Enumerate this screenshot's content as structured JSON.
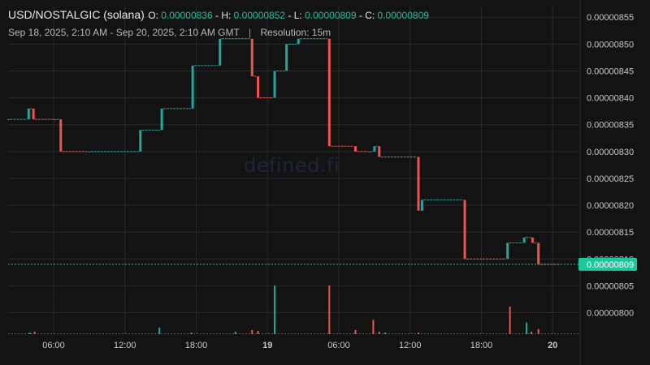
{
  "header": {
    "pair": "USD/NOSTALGIC (solana)",
    "open_label": "O:",
    "open": "0.00000836",
    "high_label": "H:",
    "high": "0.00000852",
    "low_label": "L:",
    "low": "0.00000809",
    "close_label": "C:",
    "close": "0.00000809",
    "range": "Sep 18, 2025, 2:10 AM - Sep 20, 2025, 2:10 AM GMT",
    "separator": "|",
    "resolution": "Resolution: 15m"
  },
  "watermark": "defined.fi",
  "colors": {
    "background": "#131313",
    "grid": "#2a2a2a",
    "up": "#26a69a",
    "down": "#ef5350",
    "last_price_badge": "#1bc79b"
  },
  "chart_data": {
    "type": "candlestick",
    "title": "USD/NOSTALGIC (solana)",
    "x_ticks": [
      "06:00",
      "12:00",
      "18:00",
      "19",
      "06:00",
      "12:00",
      "18:00",
      "20"
    ],
    "x_tick_hours": [
      6,
      12,
      18,
      24,
      30,
      36,
      42,
      48
    ],
    "x_range_hours": [
      2.17,
      50.17
    ],
    "y_ticks": [
      "0.00000855",
      "0.00000850",
      "0.00000845",
      "0.00000840",
      "0.00000835",
      "0.00000830",
      "0.00000825",
      "0.00000820",
      "0.00000815",
      "0.00000810",
      "0.00000805",
      "0.00000800"
    ],
    "y_tick_values": [
      855,
      850,
      845,
      840,
      835,
      830,
      825,
      820,
      815,
      810,
      805,
      800
    ],
    "y_unit_scale": "1e-8",
    "y_range": [
      796,
      857
    ],
    "last_price": "0.00000809",
    "last_price_value": 809,
    "candles": [
      {
        "t": 2.2,
        "o": 836,
        "c": 836
      },
      {
        "t": 3.9,
        "o": 836,
        "c": 838
      },
      {
        "t": 4.3,
        "o": 838,
        "c": 836
      },
      {
        "t": 6.1,
        "o": 836,
        "c": 836
      },
      {
        "t": 6.6,
        "o": 836,
        "c": 830
      },
      {
        "t": 9.0,
        "o": 830,
        "c": 830
      },
      {
        "t": 13.3,
        "o": 830,
        "c": 834
      },
      {
        "t": 15.1,
        "o": 834,
        "c": 838
      },
      {
        "t": 17.7,
        "o": 838,
        "c": 846
      },
      {
        "t": 20.0,
        "o": 846,
        "c": 851
      },
      {
        "t": 22.7,
        "o": 851,
        "c": 844
      },
      {
        "t": 23.2,
        "o": 844,
        "c": 840
      },
      {
        "t": 24.6,
        "o": 840,
        "c": 845
      },
      {
        "t": 25.6,
        "o": 845,
        "c": 850
      },
      {
        "t": 26.6,
        "o": 850,
        "c": 851
      },
      {
        "t": 29.2,
        "o": 851,
        "c": 831
      },
      {
        "t": 31.4,
        "o": 831,
        "c": 830
      },
      {
        "t": 32.6,
        "o": 830,
        "c": 830
      },
      {
        "t": 33.0,
        "o": 830,
        "c": 831
      },
      {
        "t": 33.4,
        "o": 831,
        "c": 829
      },
      {
        "t": 36.7,
        "o": 829,
        "c": 819
      },
      {
        "t": 37.0,
        "o": 819,
        "c": 821
      },
      {
        "t": 40.6,
        "o": 821,
        "c": 810
      },
      {
        "t": 44.2,
        "o": 810,
        "c": 813
      },
      {
        "t": 45.6,
        "o": 813,
        "c": 814
      },
      {
        "t": 46.3,
        "o": 814,
        "c": 813
      },
      {
        "t": 46.8,
        "o": 813,
        "c": 809
      }
    ],
    "volume": [
      {
        "t": 4.0,
        "v": 2,
        "d": "up"
      },
      {
        "t": 4.4,
        "v": 3,
        "d": "down"
      },
      {
        "t": 14.9,
        "v": 8,
        "d": "up"
      },
      {
        "t": 17.6,
        "v": 2,
        "d": "up"
      },
      {
        "t": 21.3,
        "v": 3,
        "d": "up"
      },
      {
        "t": 22.7,
        "v": 5,
        "d": "down"
      },
      {
        "t": 23.2,
        "v": 4,
        "d": "down"
      },
      {
        "t": 24.6,
        "v": 58,
        "d": "up"
      },
      {
        "t": 29.2,
        "v": 58,
        "d": "down"
      },
      {
        "t": 31.4,
        "v": 5,
        "d": "down"
      },
      {
        "t": 32.9,
        "v": 17,
        "d": "down"
      },
      {
        "t": 33.4,
        "v": 3,
        "d": "down"
      },
      {
        "t": 33.9,
        "v": 2,
        "d": "up"
      },
      {
        "t": 36.7,
        "v": 2,
        "d": "down"
      },
      {
        "t": 44.4,
        "v": 33,
        "d": "down"
      },
      {
        "t": 45.8,
        "v": 14,
        "d": "up"
      },
      {
        "t": 46.2,
        "v": 3,
        "d": "down"
      },
      {
        "t": 46.8,
        "v": 6,
        "d": "down"
      }
    ],
    "grid": true
  }
}
